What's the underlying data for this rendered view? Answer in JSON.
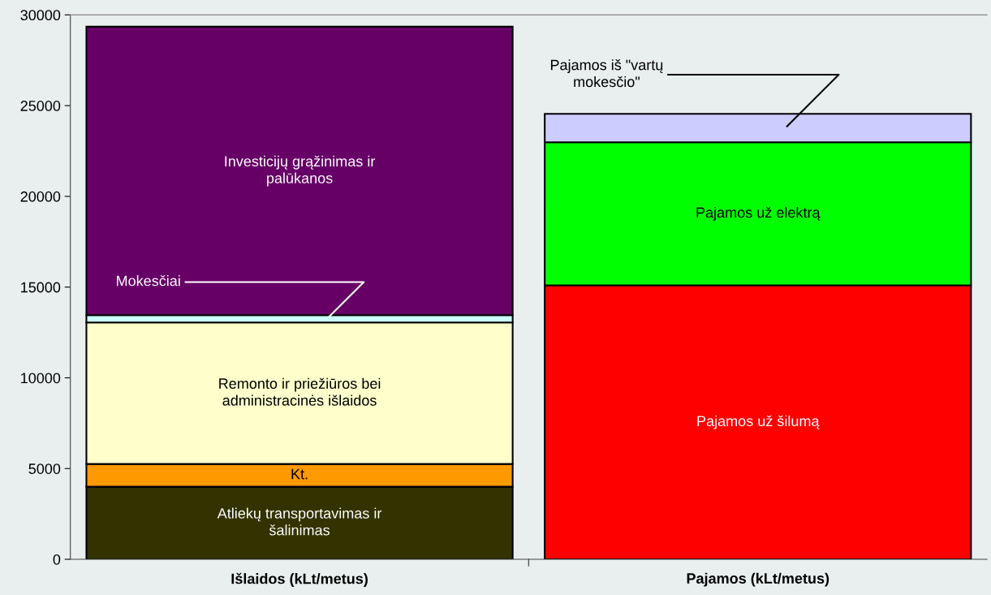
{
  "chart_data": {
    "type": "bar",
    "stacked": true,
    "categories": [
      "Išlaidos (kLt/metus)",
      "Pajamos (kLt/metus)"
    ],
    "series": [
      {
        "name": "Atliekų transportavimas ir\nšalinimas",
        "color": "#333300",
        "values": [
          4000,
          null
        ]
      },
      {
        "name": "Kt.",
        "color": "#ff9900",
        "values": [
          1250,
          null
        ]
      },
      {
        "name": "Remonto ir priežiūros bei\nadministracinės išlaidos",
        "color": "#ffffcc",
        "values": [
          7800,
          null
        ]
      },
      {
        "name": "Mokesčiai",
        "color": "#ccffff",
        "values": [
          400,
          null
        ]
      },
      {
        "name": "Investicijų grąžinimas ir\npalūkanos",
        "color": "#660066",
        "values": [
          15900,
          null
        ]
      },
      {
        "name": "Pajamos už šilumą",
        "color": "#ff0000",
        "values": [
          null,
          15100
        ]
      },
      {
        "name": "Pajamos už elektrą",
        "color": "#00ff00",
        "values": [
          null,
          7880
        ]
      },
      {
        "name": "Pajamos iš \"vartų\nmokesčio\"",
        "color": "#ccccff",
        "values": [
          null,
          1570
        ]
      }
    ],
    "ylim": [
      0,
      30000
    ],
    "yticks": [
      0,
      5000,
      10000,
      15000,
      20000,
      25000,
      30000
    ],
    "grid": false,
    "legend": false
  }
}
